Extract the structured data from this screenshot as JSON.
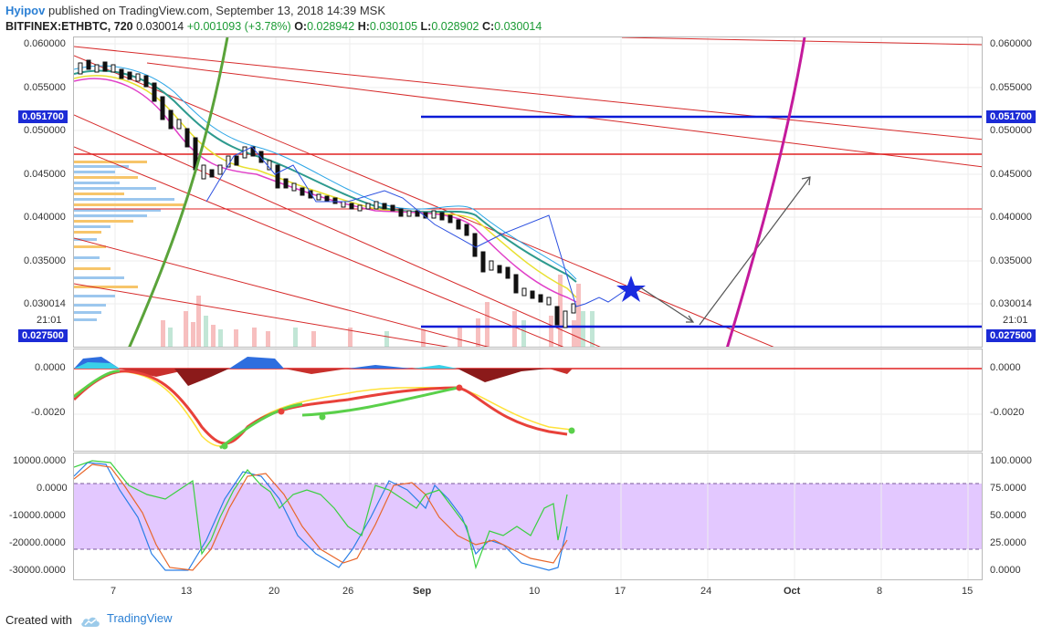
{
  "header": {
    "user": "Hyipov",
    "published_text": "published on TradingView.com, September 13, 2018 14:39 MSK",
    "symbol": "BITFINEX:ETHBTC, 720",
    "last": "0.030014",
    "change": "+0.001093 (+3.78%)",
    "o_label": "O:",
    "o_value": "0.028942",
    "h_label": "H:",
    "h_value": "0.030105",
    "l_label": "L:",
    "l_value": "0.028902",
    "c_label": "C:",
    "c_value": "0.030014"
  },
  "price_axis": {
    "ticks": [
      "0.060000",
      "0.055000",
      "0.050000",
      "0.045000",
      "0.040000",
      "0.035000",
      "0.030014"
    ],
    "left_ticks": [
      "0.060000",
      "0.055000",
      "0.050000",
      "0.045000",
      "0.040000",
      "0.035000",
      "0.030014"
    ],
    "tag_upper": "0.051700",
    "tag_lower": "0.027500",
    "time_label": "21:01"
  },
  "macd_axis": {
    "ticks": [
      "0.0000",
      "-0.0020"
    ]
  },
  "osc_axis": {
    "left_ticks": [
      "10000.0000",
      "0.0000",
      "-10000.0000",
      "-20000.0000",
      "-30000.0000"
    ],
    "right_ticks": [
      "100.0000",
      "75.0000",
      "50.0000",
      "25.0000",
      "0.0000"
    ]
  },
  "time_axis": {
    "labels": [
      "7",
      "13",
      "20",
      "26",
      "Sep",
      "10",
      "17",
      "24",
      "Oct",
      "8",
      "15"
    ]
  },
  "footer": {
    "created": "Created with",
    "brand": "TradingView"
  },
  "colors": {
    "up_candle": "#ffffff",
    "down_candle": "#111111",
    "hline_blue": "#0a1bd6",
    "hline_red": "#e02020",
    "arc_green": "#5aa33a",
    "arc_magenta": "#c41a9c",
    "osc_band": "#e3c8ff"
  }
}
